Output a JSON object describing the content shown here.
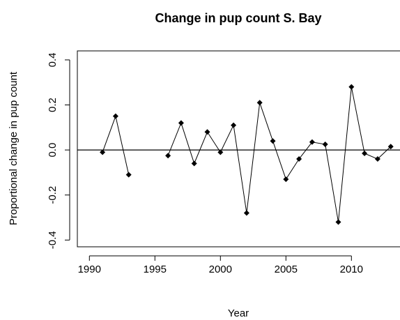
{
  "chart_data": {
    "type": "line",
    "title": "Change in pup count S. Bay",
    "x_label": "Year",
    "y_label": "Proportional change in pup count",
    "x": [
      1991,
      1992,
      1993,
      1994,
      1995,
      1996,
      1997,
      1998,
      1999,
      2000,
      2001,
      2002,
      2003,
      2004,
      2005,
      2006,
      2007,
      2008,
      2009,
      2010,
      2011,
      2012,
      2013
    ],
    "series": [
      {
        "name": "S. Bay",
        "color": "#000000",
        "values": [
          -0.01,
          0.15,
          -0.11,
          null,
          null,
          -0.025,
          0.12,
          -0.06,
          0.08,
          -0.01,
          0.11,
          -0.28,
          0.21,
          0.04,
          -0.13,
          -0.04,
          0.035,
          0.025,
          -0.32,
          0.28,
          -0.015,
          -0.04,
          0.015
        ]
      }
    ],
    "xlim": [
      1989.08,
      2013.92
    ],
    "ylim": [
      -0.43,
      0.44
    ],
    "xticks": [
      1990,
      1995,
      2000,
      2005,
      2010
    ],
    "yticks": [
      -0.4,
      -0.2,
      {
        "value": 0,
        "label": "0.0"
      },
      0.2,
      0.4
    ],
    "hline": 0
  }
}
